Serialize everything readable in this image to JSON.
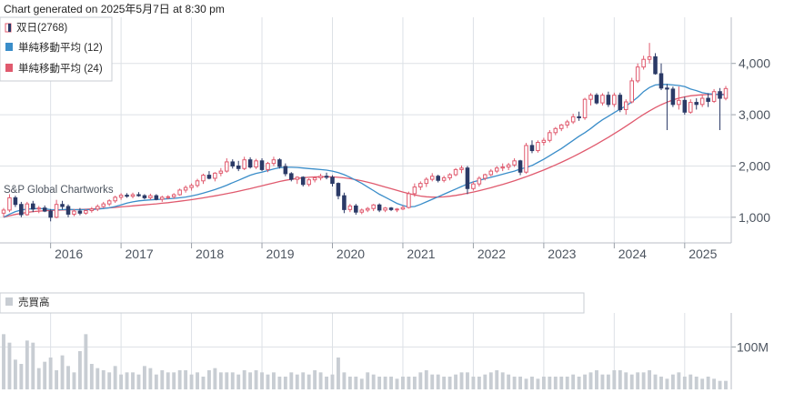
{
  "header": {
    "generated_note": "Chart generated on 2025年5月7日 at 8:30 pm"
  },
  "colors": {
    "up": "#e05a6e",
    "down": "#2b3a67",
    "ma12": "#3a8dc9",
    "ma24": "#e05a6e",
    "volume": "#c8cdd3",
    "grid": "#dde1e6"
  },
  "chart_data": [
    {
      "type": "candlestick",
      "title": "",
      "watermark": "S&P Global Chartworks",
      "legend": [
        {
          "label": "双日(2768)",
          "icon": "candle-icon"
        },
        {
          "label": "単純移動平均 (12)",
          "icon": "ma12-swatch-icon"
        },
        {
          "label": "単純移動平均 (24)",
          "icon": "ma24-swatch-icon"
        }
      ],
      "legend_position": "top-left",
      "x_ticks": [
        "2016",
        "2017",
        "2018",
        "2019",
        "2020",
        "2021",
        "2022",
        "2023",
        "2024",
        "2025"
      ],
      "y_ticks": [
        "1,000",
        "2,000",
        "3,000",
        "4,000"
      ],
      "y_tick_values": [
        1000,
        2000,
        3000,
        4000
      ],
      "ylim": [
        500,
        4900
      ],
      "grid": true,
      "start_month": "2015-05",
      "candles": [
        [
          1080,
          1180,
          1000,
          1140
        ],
        [
          1140,
          1450,
          1100,
          1380
        ],
        [
          1380,
          1420,
          1200,
          1250
        ],
        [
          1250,
          1300,
          1000,
          1050
        ],
        [
          1050,
          1300,
          1030,
          1260
        ],
        [
          1260,
          1320,
          1100,
          1160
        ],
        [
          1160,
          1220,
          1080,
          1180
        ],
        [
          1180,
          1230,
          1100,
          1120
        ],
        [
          1120,
          1160,
          920,
          1000
        ],
        [
          1000,
          1340,
          980,
          1250
        ],
        [
          1250,
          1320,
          1150,
          1210
        ],
        [
          1210,
          1250,
          1000,
          1060
        ],
        [
          1060,
          1160,
          1020,
          1120
        ],
        [
          1120,
          1180,
          1040,
          1080
        ],
        [
          1080,
          1160,
          1050,
          1130
        ],
        [
          1130,
          1200,
          1090,
          1160
        ],
        [
          1160,
          1250,
          1120,
          1210
        ],
        [
          1210,
          1300,
          1180,
          1260
        ],
        [
          1260,
          1350,
          1220,
          1320
        ],
        [
          1320,
          1420,
          1280,
          1390
        ],
        [
          1390,
          1470,
          1340,
          1430
        ],
        [
          1430,
          1470,
          1380,
          1410
        ],
        [
          1410,
          1480,
          1370,
          1440
        ],
        [
          1440,
          1490,
          1400,
          1420
        ],
        [
          1420,
          1450,
          1350,
          1380
        ],
        [
          1380,
          1460,
          1340,
          1420
        ],
        [
          1420,
          1450,
          1330,
          1350
        ],
        [
          1350,
          1420,
          1300,
          1390
        ],
        [
          1390,
          1430,
          1350,
          1400
        ],
        [
          1400,
          1470,
          1360,
          1440
        ],
        [
          1440,
          1560,
          1420,
          1530
        ],
        [
          1530,
          1620,
          1480,
          1580
        ],
        [
          1580,
          1660,
          1520,
          1620
        ],
        [
          1620,
          1750,
          1580,
          1710
        ],
        [
          1710,
          1850,
          1650,
          1820
        ],
        [
          1820,
          1900,
          1740,
          1760
        ],
        [
          1760,
          1880,
          1700,
          1860
        ],
        [
          1860,
          1960,
          1800,
          1900
        ],
        [
          1900,
          2150,
          1870,
          2080
        ],
        [
          2080,
          2130,
          1950,
          2000
        ],
        [
          2000,
          2100,
          1900,
          1950
        ],
        [
          1950,
          2180,
          1920,
          2120
        ],
        [
          2120,
          2170,
          1950,
          1980
        ],
        [
          1980,
          2140,
          1940,
          2100
        ],
        [
          2100,
          2150,
          1900,
          1930
        ],
        [
          1930,
          2080,
          1880,
          2050
        ],
        [
          2050,
          2180,
          2000,
          2120
        ],
        [
          2120,
          2150,
          1950,
          1990
        ],
        [
          1990,
          2050,
          1800,
          1850
        ],
        [
          1850,
          1880,
          1700,
          1740
        ],
        [
          1740,
          1800,
          1650,
          1780
        ],
        [
          1780,
          1800,
          1600,
          1640
        ],
        [
          1640,
          1760,
          1600,
          1730
        ],
        [
          1730,
          1800,
          1680,
          1770
        ],
        [
          1770,
          1850,
          1720,
          1800
        ],
        [
          1800,
          1870,
          1740,
          1780
        ],
        [
          1780,
          1820,
          1600,
          1660
        ],
        [
          1660,
          1680,
          1350,
          1420
        ],
        [
          1420,
          1480,
          1080,
          1150
        ],
        [
          1150,
          1260,
          1100,
          1220
        ],
        [
          1220,
          1260,
          1050,
          1100
        ],
        [
          1100,
          1170,
          1060,
          1140
        ],
        [
          1140,
          1200,
          1100,
          1170
        ],
        [
          1170,
          1260,
          1120,
          1240
        ],
        [
          1240,
          1270,
          1100,
          1140
        ],
        [
          1140,
          1200,
          1100,
          1180
        ],
        [
          1180,
          1200,
          1120,
          1150
        ],
        [
          1150,
          1180,
          1100,
          1160
        ],
        [
          1160,
          1230,
          1140,
          1190
        ],
        [
          1190,
          1500,
          1170,
          1460
        ],
        [
          1460,
          1660,
          1400,
          1590
        ],
        [
          1590,
          1700,
          1530,
          1660
        ],
        [
          1660,
          1780,
          1590,
          1740
        ],
        [
          1740,
          1860,
          1700,
          1800
        ],
        [
          1800,
          1830,
          1680,
          1720
        ],
        [
          1720,
          1810,
          1680,
          1770
        ],
        [
          1770,
          1860,
          1720,
          1830
        ],
        [
          1830,
          1960,
          1800,
          1930
        ],
        [
          1930,
          2010,
          1860,
          1960
        ],
        [
          1960,
          2000,
          1450,
          1560
        ],
        [
          1560,
          1700,
          1520,
          1650
        ],
        [
          1650,
          1800,
          1600,
          1760
        ],
        [
          1760,
          1850,
          1720,
          1830
        ],
        [
          1830,
          1940,
          1800,
          1900
        ],
        [
          1900,
          2000,
          1860,
          1960
        ],
        [
          1960,
          2050,
          1900,
          1980
        ],
        [
          1980,
          2060,
          1920,
          2020
        ],
        [
          2020,
          2150,
          1980,
          2100
        ],
        [
          2100,
          2120,
          1820,
          1880
        ],
        [
          1880,
          2450,
          1850,
          2400
        ],
        [
          2400,
          2500,
          2250,
          2300
        ],
        [
          2300,
          2500,
          2260,
          2460
        ],
        [
          2460,
          2550,
          2400,
          2500
        ],
        [
          2500,
          2700,
          2460,
          2650
        ],
        [
          2650,
          2760,
          2600,
          2730
        ],
        [
          2730,
          2820,
          2680,
          2800
        ],
        [
          2800,
          2900,
          2740,
          2860
        ],
        [
          2860,
          3020,
          2820,
          2960
        ],
        [
          2960,
          3060,
          2880,
          2940
        ],
        [
          2940,
          3330,
          2900,
          3300
        ],
        [
          3300,
          3420,
          3180,
          3380
        ],
        [
          3380,
          3420,
          3200,
          3230
        ],
        [
          3230,
          3420,
          3180,
          3380
        ],
        [
          3380,
          3450,
          3150,
          3200
        ],
        [
          3200,
          3430,
          3150,
          3380
        ],
        [
          3380,
          3430,
          3050,
          3100
        ],
        [
          3100,
          3300,
          3000,
          3250
        ],
        [
          3250,
          3720,
          3220,
          3660
        ],
        [
          3660,
          4000,
          3620,
          3930
        ],
        [
          3930,
          4150,
          3880,
          4080
        ],
        [
          4080,
          4400,
          4000,
          4130
        ],
        [
          4130,
          4200,
          3780,
          3800
        ],
        [
          3800,
          4000,
          3480,
          3520
        ],
        [
          3520,
          3600,
          2700,
          3500
        ],
        [
          3500,
          3550,
          3150,
          3200
        ],
        [
          3200,
          3550,
          3100,
          3280
        ],
        [
          3280,
          3350,
          3000,
          3050
        ],
        [
          3050,
          3300,
          3020,
          3240
        ],
        [
          3240,
          3320,
          3100,
          3200
        ],
        [
          3200,
          3380,
          3150,
          3320
        ],
        [
          3320,
          3420,
          3150,
          3260
        ],
        [
          3260,
          3500,
          3230,
          3450
        ],
        [
          3450,
          3520,
          2700,
          3320
        ],
        [
          3320,
          3560,
          3280,
          3510
        ]
      ],
      "ma12": [
        1000,
        1060,
        1110,
        1140,
        1160,
        1165,
        1170,
        1165,
        1150,
        1145,
        1150,
        1155,
        1150,
        1148,
        1150,
        1152,
        1158,
        1170,
        1185,
        1210,
        1240,
        1275,
        1300,
        1320,
        1330,
        1340,
        1345,
        1352,
        1360,
        1368,
        1380,
        1395,
        1415,
        1440,
        1470,
        1505,
        1540,
        1580,
        1625,
        1675,
        1720,
        1770,
        1820,
        1855,
        1880,
        1910,
        1940,
        1965,
        1975,
        1975,
        1970,
        1960,
        1950,
        1940,
        1930,
        1920,
        1900,
        1870,
        1830,
        1780,
        1720,
        1660,
        1590,
        1520,
        1450,
        1390,
        1330,
        1270,
        1230,
        1200,
        1210,
        1250,
        1300,
        1350,
        1400,
        1450,
        1500,
        1550,
        1600,
        1650,
        1690,
        1720,
        1750,
        1780,
        1810,
        1840,
        1870,
        1900,
        1940,
        1970,
        2010,
        2070,
        2130,
        2200,
        2270,
        2340,
        2420,
        2500,
        2580,
        2650,
        2730,
        2820,
        2900,
        2970,
        3040,
        3110,
        3170,
        3250,
        3340,
        3450,
        3530,
        3580,
        3590,
        3590,
        3580,
        3570,
        3550,
        3500,
        3470,
        3430,
        3410,
        3400,
        3390,
        3390
      ],
      "ma24": [
        1000,
        1030,
        1055,
        1075,
        1095,
        1110,
        1120,
        1128,
        1133,
        1137,
        1141,
        1145,
        1148,
        1152,
        1157,
        1162,
        1168,
        1175,
        1183,
        1192,
        1202,
        1212,
        1222,
        1232,
        1242,
        1252,
        1262,
        1273,
        1285,
        1298,
        1312,
        1327,
        1343,
        1360,
        1378,
        1397,
        1417,
        1438,
        1460,
        1483,
        1507,
        1532,
        1558,
        1585,
        1613,
        1642,
        1670,
        1697,
        1720,
        1740,
        1757,
        1770,
        1780,
        1787,
        1790,
        1790,
        1787,
        1780,
        1768,
        1752,
        1733,
        1710,
        1684,
        1655,
        1623,
        1590,
        1557,
        1524,
        1492,
        1462,
        1436,
        1414,
        1400,
        1392,
        1392,
        1398,
        1410,
        1426,
        1446,
        1468,
        1492,
        1518,
        1546,
        1576,
        1608,
        1641,
        1676,
        1712,
        1750,
        1790,
        1832,
        1876,
        1922,
        1970,
        2020,
        2072,
        2126,
        2182,
        2240,
        2300,
        2362,
        2426,
        2492,
        2560,
        2630,
        2702,
        2776,
        2852,
        2930,
        3005,
        3075,
        3138,
        3195,
        3245,
        3288,
        3322,
        3348,
        3368,
        3380,
        3388,
        3393,
        3396,
        3398,
        3400
      ],
      "volume_label": "売買高",
      "volume_ticks": [
        "100M"
      ],
      "volume_tick_values": [
        100
      ],
      "volume_ylim": [
        0,
        180
      ],
      "volume_unit": "M",
      "volume": [
        130,
        110,
        70,
        60,
        115,
        110,
        50,
        65,
        75,
        45,
        80,
        55,
        40,
        90,
        130,
        60,
        50,
        45,
        40,
        55,
        35,
        40,
        40,
        35,
        55,
        50,
        35,
        45,
        40,
        40,
        45,
        45,
        35,
        40,
        30,
        45,
        50,
        40,
        40,
        40,
        35,
        45,
        40,
        45,
        40,
        35,
        40,
        30,
        30,
        40,
        35,
        40,
        35,
        45,
        40,
        30,
        35,
        75,
        40,
        30,
        30,
        25,
        40,
        35,
        30,
        30,
        30,
        25,
        30,
        30,
        30,
        40,
        45,
        35,
        35,
        30,
        30,
        35,
        40,
        40,
        30,
        30,
        35,
        40,
        45,
        40,
        35,
        30,
        30,
        25,
        30,
        25,
        30,
        30,
        30,
        30,
        30,
        35,
        30,
        35,
        40,
        45,
        35,
        35,
        45,
        45,
        40,
        35,
        40,
        40,
        45,
        35,
        30,
        25,
        35,
        40,
        30,
        35,
        30,
        25,
        30,
        25,
        20,
        20
      ]
    }
  ]
}
